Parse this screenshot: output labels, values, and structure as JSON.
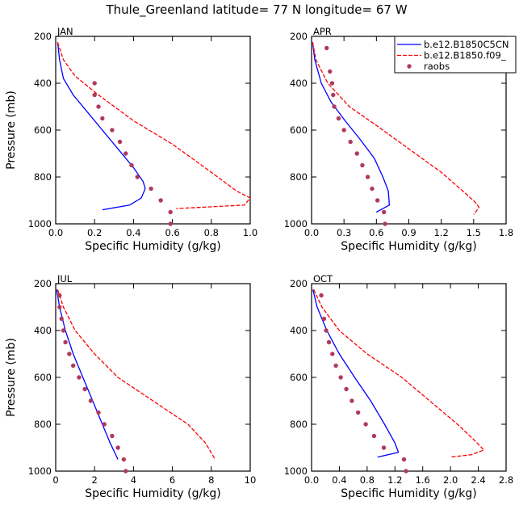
{
  "title": "Thule_Greenland  latitude= 77 N longitude= 67 W",
  "colors": {
    "model1": "#0000ff",
    "model2": "#ff0000",
    "raobs": "#b03a5b"
  },
  "legend": {
    "items": [
      {
        "label": "b.e12.B1850C5CN",
        "style": "solid"
      },
      {
        "label": "b.e12.B1850.f09_",
        "style": "dashed"
      },
      {
        "label": "raobs",
        "style": "dot"
      }
    ]
  },
  "chart_data": [
    {
      "type": "line",
      "panel": "JAN",
      "xlabel": "Specific Humidity (g/kg)",
      "ylabel": "Pressure (mb)",
      "xlim": [
        0,
        1.0
      ],
      "xticks": [
        0.0,
        0.2,
        0.4,
        0.6,
        0.8,
        1.0
      ],
      "xtick_labels": [
        "0.0",
        "0.2",
        "0.4",
        "0.6",
        "0.8",
        "1.0"
      ],
      "ylim": [
        200,
        1000
      ],
      "yticks": [
        200,
        400,
        600,
        800,
        1000
      ],
      "series": [
        {
          "name": "b.e12.B1850C5CN",
          "points": [
            [
              0.01,
              225
            ],
            [
              0.02,
              300
            ],
            [
              0.04,
              380
            ],
            [
              0.09,
              450
            ],
            [
              0.16,
              520
            ],
            [
              0.24,
              600
            ],
            [
              0.32,
              680
            ],
            [
              0.4,
              760
            ],
            [
              0.45,
              820
            ],
            [
              0.46,
              850
            ],
            [
              0.44,
              890
            ],
            [
              0.38,
              920
            ],
            [
              0.24,
              940
            ]
          ]
        },
        {
          "name": "b.e12.B1850.f09_",
          "points": [
            [
              0.01,
              225
            ],
            [
              0.04,
              300
            ],
            [
              0.1,
              370
            ],
            [
              0.22,
              450
            ],
            [
              0.4,
              560
            ],
            [
              0.6,
              660
            ],
            [
              0.8,
              780
            ],
            [
              0.93,
              860
            ],
            [
              1.0,
              890
            ],
            [
              0.97,
              920
            ],
            [
              0.62,
              935
            ]
          ]
        },
        {
          "name": "raobs",
          "points": [
            [
              0.2,
              400
            ],
            [
              0.2,
              450
            ],
            [
              0.22,
              500
            ],
            [
              0.24,
              550
            ],
            [
              0.29,
              600
            ],
            [
              0.33,
              650
            ],
            [
              0.36,
              700
            ],
            [
              0.39,
              750
            ],
            [
              0.42,
              800
            ],
            [
              0.49,
              850
            ],
            [
              0.54,
              900
            ],
            [
              0.59,
              950
            ],
            [
              0.59,
              1000
            ]
          ]
        }
      ]
    },
    {
      "type": "line",
      "panel": "APR",
      "xlabel": "Specific Humidity (g/kg)",
      "ylabel": "Pressure (mb)",
      "xlim": [
        0,
        1.8
      ],
      "xticks": [
        0,
        0.3,
        0.6,
        0.9,
        1.2,
        1.5,
        1.8
      ],
      "xtick_labels": [
        "0.0",
        "0.3",
        "0.6",
        "0.9",
        "1.2",
        "1.5",
        "1.8"
      ],
      "ylim": [
        200,
        1000
      ],
      "yticks": [
        200,
        400,
        600,
        800,
        1000
      ],
      "series": [
        {
          "name": "b.e12.B1850C5CN",
          "points": [
            [
              0.01,
              225
            ],
            [
              0.03,
              300
            ],
            [
              0.09,
              400
            ],
            [
              0.18,
              480
            ],
            [
              0.31,
              560
            ],
            [
              0.45,
              640
            ],
            [
              0.58,
              720
            ],
            [
              0.66,
              800
            ],
            [
              0.71,
              860
            ],
            [
              0.72,
              920
            ],
            [
              0.6,
              950
            ]
          ]
        },
        {
          "name": "b.e12.B1850.f09_",
          "points": [
            [
              0.01,
              225
            ],
            [
              0.04,
              300
            ],
            [
              0.15,
              400
            ],
            [
              0.35,
              500
            ],
            [
              0.6,
              580
            ],
            [
              0.9,
              680
            ],
            [
              1.2,
              780
            ],
            [
              1.4,
              860
            ],
            [
              1.52,
              910
            ],
            [
              1.55,
              930
            ],
            [
              1.5,
              960
            ]
          ]
        },
        {
          "name": "raobs",
          "points": [
            [
              0.14,
              250
            ],
            [
              0.17,
              350
            ],
            [
              0.19,
              400
            ],
            [
              0.2,
              450
            ],
            [
              0.21,
              500
            ],
            [
              0.25,
              550
            ],
            [
              0.3,
              600
            ],
            [
              0.36,
              650
            ],
            [
              0.42,
              700
            ],
            [
              0.47,
              750
            ],
            [
              0.52,
              800
            ],
            [
              0.56,
              850
            ],
            [
              0.61,
              900
            ],
            [
              0.67,
              950
            ],
            [
              0.68,
              1000
            ]
          ]
        }
      ]
    },
    {
      "type": "line",
      "panel": "JUL",
      "xlabel": "Specific Humidity (g/kg)",
      "ylabel": "Pressure (mb)",
      "xlim": [
        0,
        10
      ],
      "xticks": [
        0,
        2,
        4,
        6,
        8,
        10
      ],
      "xtick_labels": [
        "0",
        "2",
        "4",
        "6",
        "8",
        "10"
      ],
      "ylim": [
        200,
        1000
      ],
      "yticks": [
        200,
        400,
        600,
        800,
        1000
      ],
      "series": [
        {
          "name": "b.e12.B1850C5CN",
          "points": [
            [
              0.05,
              225
            ],
            [
              0.2,
              300
            ],
            [
              0.5,
              400
            ],
            [
              0.9,
              500
            ],
            [
              1.4,
              600
            ],
            [
              1.9,
              700
            ],
            [
              2.4,
              800
            ],
            [
              2.8,
              880
            ],
            [
              3.2,
              950
            ]
          ]
        },
        {
          "name": "b.e12.B1850.f09_",
          "points": [
            [
              0.1,
              225
            ],
            [
              0.4,
              300
            ],
            [
              1.0,
              400
            ],
            [
              2.0,
              500
            ],
            [
              3.2,
              600
            ],
            [
              5.0,
              700
            ],
            [
              6.8,
              800
            ],
            [
              7.7,
              880
            ],
            [
              8.2,
              950
            ]
          ]
        },
        {
          "name": "raobs",
          "points": [
            [
              0.2,
              250
            ],
            [
              0.2,
              300
            ],
            [
              0.3,
              350
            ],
            [
              0.4,
              400
            ],
            [
              0.5,
              450
            ],
            [
              0.7,
              500
            ],
            [
              0.9,
              550
            ],
            [
              1.2,
              600
            ],
            [
              1.5,
              650
            ],
            [
              1.8,
              700
            ],
            [
              2.2,
              750
            ],
            [
              2.5,
              800
            ],
            [
              2.9,
              850
            ],
            [
              3.2,
              900
            ],
            [
              3.5,
              950
            ],
            [
              3.6,
              1000
            ]
          ]
        }
      ]
    },
    {
      "type": "line",
      "panel": "OCT",
      "xlabel": "Specific Humidity (g/kg)",
      "ylabel": "Pressure (mb)",
      "xlim": [
        0,
        2.8
      ],
      "xticks": [
        0,
        0.4,
        0.8,
        1.2,
        1.6,
        2.0,
        2.4,
        2.8
      ],
      "xtick_labels": [
        "0.0",
        "0.4",
        "0.8",
        "1.2",
        "1.6",
        "2.0",
        "2.4",
        "2.8"
      ],
      "ylim": [
        200,
        1000
      ],
      "yticks": [
        200,
        400,
        600,
        800,
        1000
      ],
      "series": [
        {
          "name": "b.e12.B1850C5CN",
          "points": [
            [
              0.02,
              225
            ],
            [
              0.08,
              300
            ],
            [
              0.22,
              400
            ],
            [
              0.4,
              500
            ],
            [
              0.62,
              600
            ],
            [
              0.85,
              700
            ],
            [
              1.05,
              800
            ],
            [
              1.2,
              880
            ],
            [
              1.25,
              920
            ],
            [
              0.95,
              940
            ]
          ]
        },
        {
          "name": "b.e12.B1850.f09_",
          "points": [
            [
              0.03,
              225
            ],
            [
              0.15,
              300
            ],
            [
              0.4,
              400
            ],
            [
              0.8,
              500
            ],
            [
              1.3,
              600
            ],
            [
              1.7,
              700
            ],
            [
              2.1,
              800
            ],
            [
              2.35,
              870
            ],
            [
              2.48,
              910
            ],
            [
              2.3,
              930
            ],
            [
              2.0,
              940
            ]
          ]
        },
        {
          "name": "raobs",
          "points": [
            [
              0.14,
              250
            ],
            [
              0.18,
              350
            ],
            [
              0.21,
              400
            ],
            [
              0.25,
              450
            ],
            [
              0.3,
              500
            ],
            [
              0.35,
              550
            ],
            [
              0.42,
              600
            ],
            [
              0.5,
              650
            ],
            [
              0.58,
              700
            ],
            [
              0.67,
              750
            ],
            [
              0.78,
              800
            ],
            [
              0.9,
              850
            ],
            [
              1.04,
              900
            ],
            [
              1.33,
              950
            ],
            [
              1.36,
              1000
            ]
          ]
        }
      ]
    }
  ]
}
